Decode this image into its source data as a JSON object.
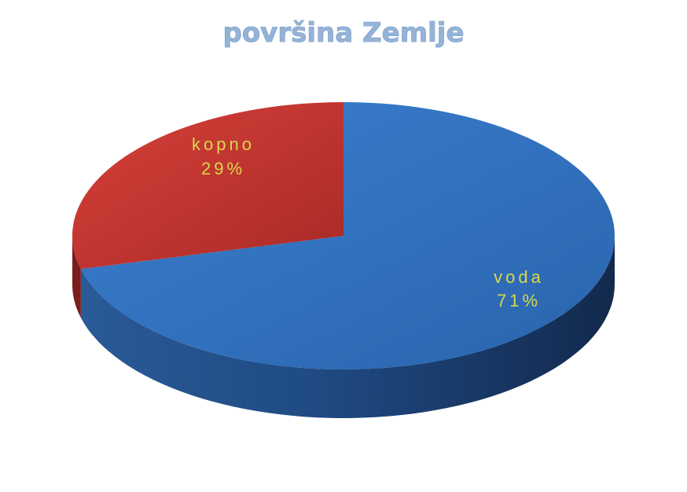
{
  "chart_data": {
    "type": "pie",
    "title": "površina Zemlje",
    "categories": [
      "kopno",
      "voda"
    ],
    "values": [
      29,
      71
    ],
    "value_labels": [
      "29%",
      "71%"
    ],
    "colors": {
      "kopno": "#c0322e",
      "voda": "#2f6ebd",
      "title": "#94b3d7"
    },
    "style": "3d-pie",
    "legend": "none"
  }
}
